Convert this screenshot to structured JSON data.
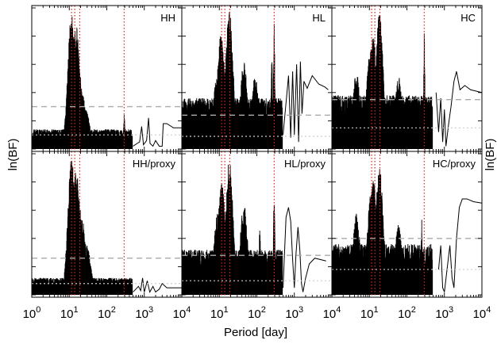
{
  "figure": {
    "ylabel_left": "ln(BF)",
    "ylabel_right": "ln(BF)",
    "xlabel": "Period [day]"
  },
  "chart_data": {
    "type": "line",
    "layout": "2x3 grid of panels sharing a logarithmic period axis",
    "x_scale": "log",
    "xlabel": "Period [day]",
    "ylabel": "ln(BF)",
    "xlim": [
      1,
      10000
    ],
    "x_ticks": [
      {
        "base": "10",
        "exp": "0"
      },
      {
        "base": "10",
        "exp": "1"
      },
      {
        "base": "10",
        "exp": "2"
      },
      {
        "base": "10",
        "exp": "3"
      },
      {
        "base": "10",
        "exp": "4"
      }
    ],
    "y_tick_labels": "none",
    "reference_periods_days": [
      11.5,
      14,
      19,
      290
    ],
    "reference_line_color": "#dd2222",
    "signal_color": "#000000",
    "threshold_colors": {
      "upper": "#aaaaaa",
      "lower": "#cccccc"
    },
    "panels": [
      {
        "label": "HH",
        "row": 0,
        "col": 0,
        "thresholds": [
          0.3,
          0.1
        ],
        "peaks": [
          [
            11.5,
            0.97
          ],
          [
            13.8,
            0.78
          ],
          [
            15.2,
            0.88
          ],
          [
            17.8,
            0.58
          ],
          [
            22.0,
            0.4
          ],
          [
            28.0,
            0.28
          ],
          [
            290,
            0.26
          ]
        ],
        "noise_level": 0.14,
        "long_period_curve": [
          [
            500,
            0.02
          ],
          [
            650,
            0.04
          ],
          [
            750,
            0.05
          ],
          [
            850,
            0.16
          ],
          [
            950,
            0.03
          ],
          [
            1150,
            0.06
          ],
          [
            1300,
            0.22
          ],
          [
            1420,
            0.04
          ],
          [
            1700,
            0.02
          ],
          [
            2000,
            0.06
          ],
          [
            2500,
            0.02
          ],
          [
            3000,
            0.02
          ],
          [
            3200,
            0.18
          ],
          [
            4000,
            0.18
          ],
          [
            6000,
            0.15
          ],
          [
            10000,
            0.15
          ]
        ]
      },
      {
        "label": "HL",
        "row": 0,
        "col": 1,
        "thresholds": [
          0.24,
          0.09
        ],
        "peaks": [
          [
            8.5,
            0.5
          ],
          [
            11.0,
            0.82
          ],
          [
            13.0,
            0.62
          ],
          [
            18.5,
            1.0
          ],
          [
            45.0,
            0.62
          ],
          [
            90.0,
            0.52
          ],
          [
            250.0,
            0.72
          ],
          [
            290.0,
            0.92
          ]
        ],
        "noise_level": 0.36,
        "long_period_curve": [
          [
            500,
            0.1
          ],
          [
            700,
            0.52
          ],
          [
            800,
            0.08
          ],
          [
            900,
            0.55
          ],
          [
            1000,
            0.1
          ],
          [
            1150,
            0.6
          ],
          [
            1300,
            0.05
          ],
          [
            1450,
            0.62
          ],
          [
            1600,
            0.25
          ],
          [
            1800,
            0.48
          ],
          [
            2200,
            0.43
          ],
          [
            3000,
            0.52
          ],
          [
            4500,
            0.46
          ],
          [
            6500,
            0.44
          ],
          [
            8000,
            0.42
          ]
        ]
      },
      {
        "label": "HC",
        "row": 0,
        "col": 2,
        "thresholds": [
          0.35,
          0.15
        ],
        "peaks": [
          [
            10.5,
            0.72
          ],
          [
            12.5,
            0.85
          ],
          [
            18.5,
            0.97
          ],
          [
            4.5,
            0.55
          ],
          [
            60.0,
            0.52
          ],
          [
            290.0,
            0.82
          ]
        ],
        "noise_level": 0.38,
        "long_period_curve": [
          [
            600,
            0.4
          ],
          [
            700,
            0.12
          ],
          [
            800,
            0.36
          ],
          [
            900,
            0.05
          ],
          [
            1000,
            0.28
          ],
          [
            1100,
            0.02
          ],
          [
            1300,
            0.18
          ],
          [
            1500,
            0.3
          ],
          [
            1800,
            0.48
          ],
          [
            2100,
            0.55
          ],
          [
            2600,
            0.42
          ],
          [
            3500,
            0.45
          ],
          [
            5000,
            0.42
          ],
          [
            10000,
            0.4
          ]
        ]
      },
      {
        "label": "HH/proxy",
        "row": 1,
        "col": 0,
        "thresholds": [
          0.26,
          0.08
        ],
        "peaks": [
          [
            11.5,
            0.97
          ],
          [
            13.5,
            0.82
          ],
          [
            15.5,
            0.9
          ],
          [
            17.5,
            0.7
          ],
          [
            22.0,
            0.55
          ],
          [
            30.0,
            0.35
          ]
        ],
        "noise_level": 0.12,
        "long_period_curve": [
          [
            500,
            0.02
          ],
          [
            700,
            0.06
          ],
          [
            800,
            0.03
          ],
          [
            900,
            0.12
          ],
          [
            1000,
            0.02
          ],
          [
            1200,
            0.1
          ],
          [
            1400,
            0.02
          ],
          [
            1700,
            0.06
          ],
          [
            2000,
            0.02
          ],
          [
            2500,
            0.04
          ],
          [
            3000,
            0.08
          ],
          [
            4000,
            0.05
          ],
          [
            6000,
            0.05
          ],
          [
            10000,
            0.05
          ]
        ]
      },
      {
        "label": "HL/proxy",
        "row": 1,
        "col": 1,
        "thresholds": [
          0.28,
          0.1
        ],
        "peaks": [
          [
            9.0,
            0.58
          ],
          [
            11.5,
            0.8
          ],
          [
            13.5,
            0.52
          ],
          [
            18.5,
            0.97
          ],
          [
            45.0,
            0.65
          ],
          [
            120.0,
            0.5
          ],
          [
            290.0,
            0.8
          ]
        ],
        "noise_level": 0.32,
        "long_period_curve": [
          [
            500,
            0.05
          ],
          [
            600,
            0.55
          ],
          [
            700,
            0.62
          ],
          [
            800,
            0.52
          ],
          [
            900,
            0.25
          ],
          [
            1000,
            0.05
          ],
          [
            1100,
            0.28
          ],
          [
            1250,
            0.48
          ],
          [
            1400,
            0.32
          ],
          [
            1550,
            0.08
          ],
          [
            1700,
            0.02
          ],
          [
            2000,
            0.12
          ],
          [
            2500,
            0.22
          ],
          [
            3500,
            0.26
          ],
          [
            5000,
            0.25
          ],
          [
            7000,
            0.24
          ]
        ]
      },
      {
        "label": "HC/proxy",
        "row": 1,
        "col": 2,
        "thresholds": [
          0.4,
          0.18
        ],
        "peaks": [
          [
            4.5,
            0.58
          ],
          [
            11.0,
            0.72
          ],
          [
            13.0,
            0.84
          ],
          [
            18.5,
            0.95
          ],
          [
            60.0,
            0.5
          ],
          [
            250.0,
            0.55
          ]
        ],
        "noise_level": 0.36,
        "long_period_curve": [
          [
            700,
            0.18
          ],
          [
            800,
            0.35
          ],
          [
            900,
            0.05
          ],
          [
            1000,
            0.02
          ],
          [
            1200,
            0.2
          ],
          [
            1400,
            0.35
          ],
          [
            1600,
            0.12
          ],
          [
            1800,
            0.05
          ],
          [
            2100,
            0.4
          ],
          [
            2500,
            0.62
          ],
          [
            3000,
            0.68
          ],
          [
            4000,
            0.68
          ],
          [
            6000,
            0.66
          ],
          [
            10000,
            0.65
          ]
        ]
      }
    ]
  }
}
